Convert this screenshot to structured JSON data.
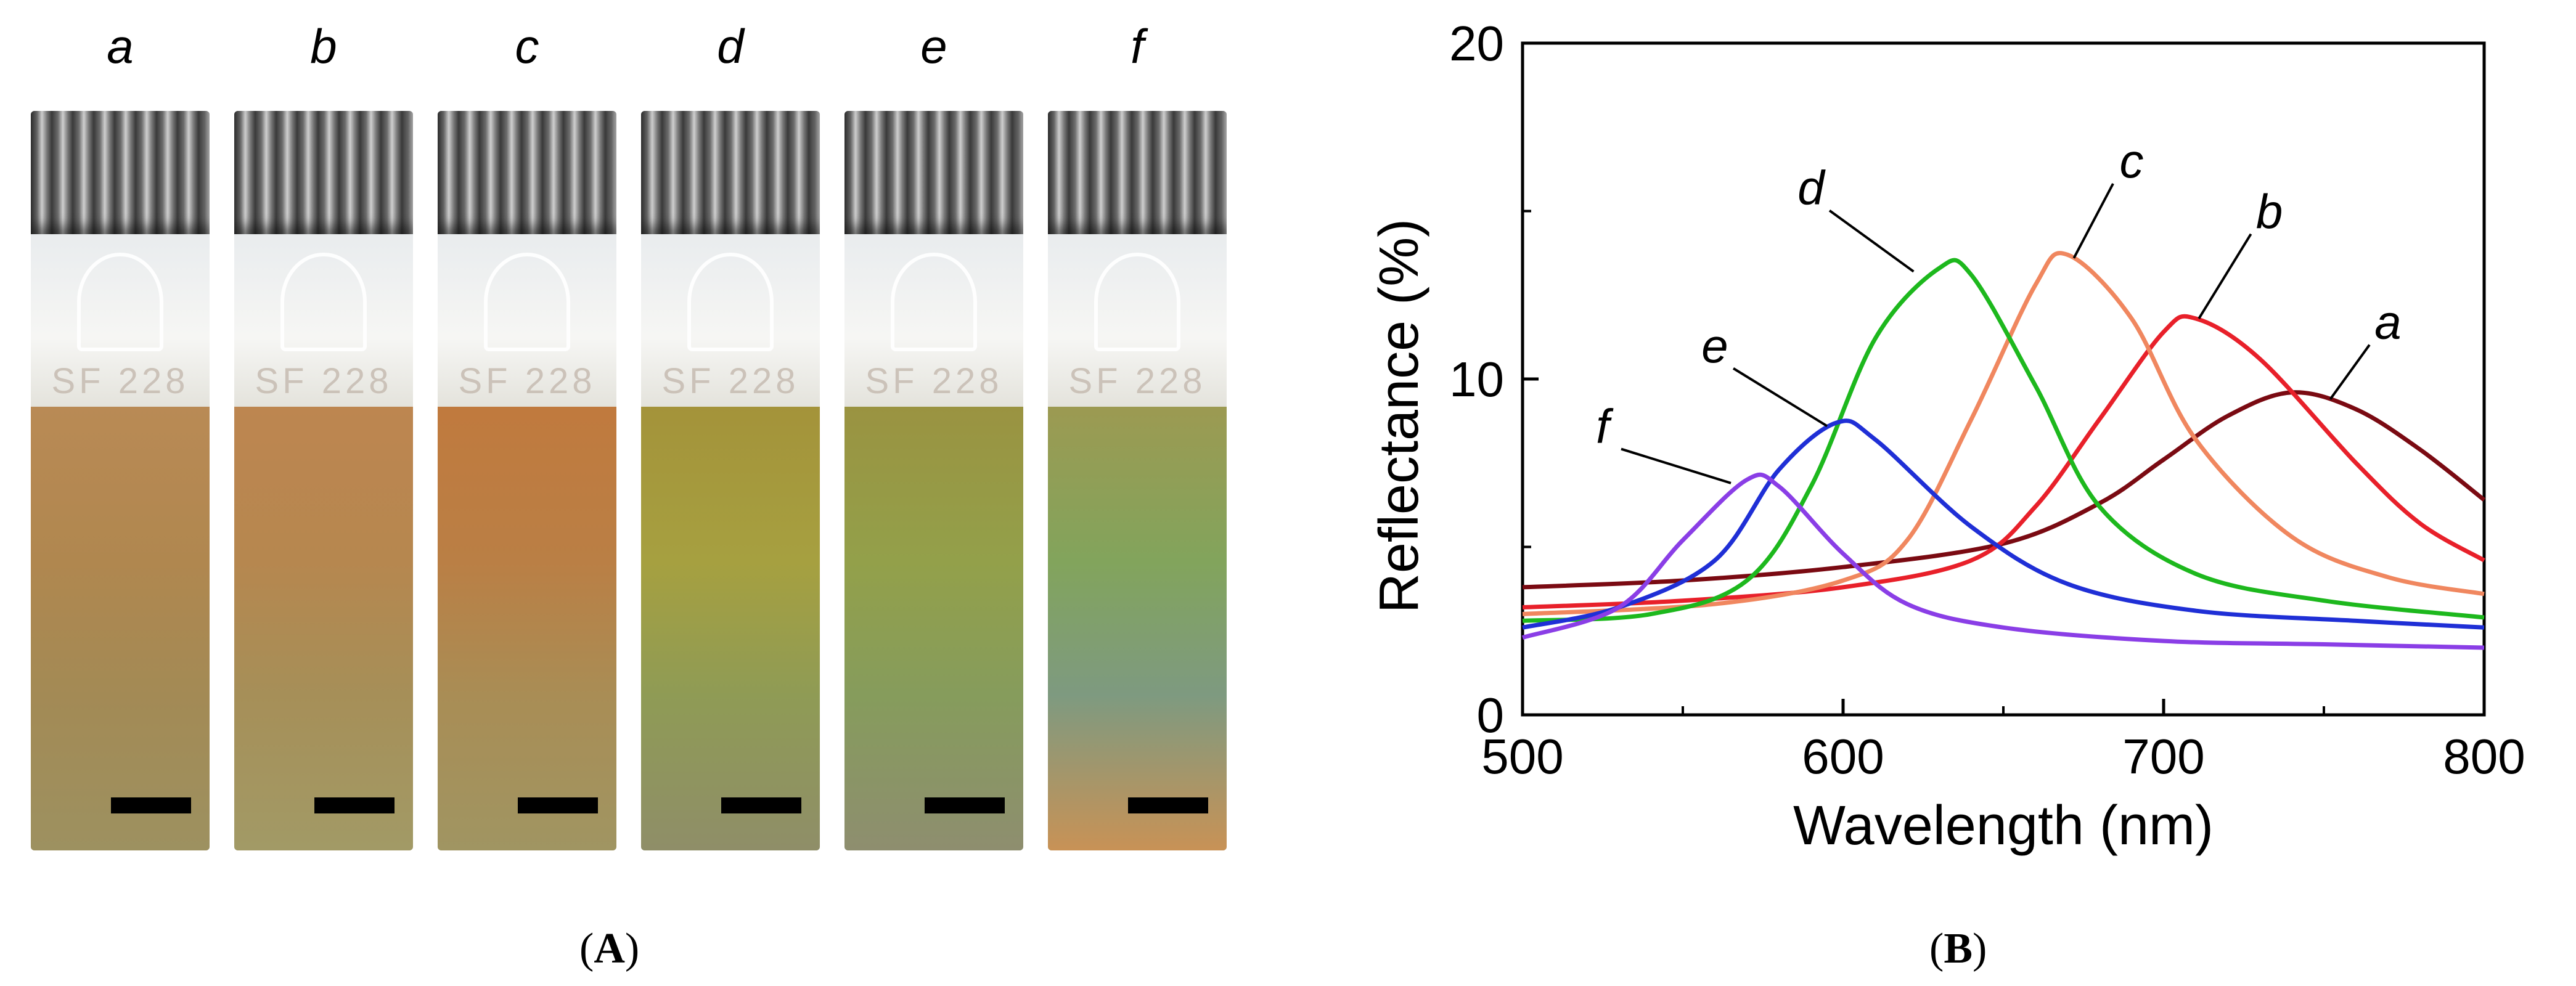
{
  "panel_a": {
    "label_open": "(",
    "label_letter": "A",
    "label_close": ")",
    "vials": [
      {
        "letter": "a",
        "etch": "SF 228",
        "colors": [
          "#b98a55",
          "#b0874f",
          "#a38a55",
          "#9d9160"
        ]
      },
      {
        "letter": "b",
        "etch": "SF 228",
        "colors": [
          "#bd8650",
          "#b6874f",
          "#a68f58",
          "#a29a66"
        ]
      },
      {
        "letter": "c",
        "etch": "SF 228",
        "colors": [
          "#c07a3e",
          "#ba7f45",
          "#a98d55",
          "#a09562"
        ]
      },
      {
        "letter": "d",
        "etch": "SF 228",
        "colors": [
          "#a4933a",
          "#a6a040",
          "#8f9b55",
          "#8f8e68"
        ]
      },
      {
        "letter": "e",
        "etch": "SF 228",
        "colors": [
          "#9a9341",
          "#93a04a",
          "#869c5c",
          "#8e8e6f"
        ]
      },
      {
        "letter": "f",
        "etch": "SF 228",
        "colors": [
          "#9c9a52",
          "#82a45c",
          "#7e9a80",
          "#c89256"
        ]
      }
    ]
  },
  "panel_b": {
    "label_open": "(",
    "label_letter": "B",
    "label_close": ")"
  },
  "chart_data": {
    "type": "line",
    "xlabel": "Wavelength (nm)",
    "ylabel": "Reflectance (%)",
    "xlim": [
      500,
      800
    ],
    "ylim": [
      0,
      20
    ],
    "xticks": [
      500,
      600,
      700,
      800
    ],
    "yticks": [
      0,
      10,
      20
    ],
    "grid": false,
    "series": [
      {
        "name": "a",
        "color": "#7a0a12",
        "points": [
          [
            500,
            3.8
          ],
          [
            550,
            4.0
          ],
          [
            600,
            4.4
          ],
          [
            650,
            5.1
          ],
          [
            680,
            6.3
          ],
          [
            700,
            7.6
          ],
          [
            720,
            8.9
          ],
          [
            740,
            9.6
          ],
          [
            760,
            9.1
          ],
          [
            780,
            7.9
          ],
          [
            800,
            6.4
          ]
        ]
      },
      {
        "name": "b",
        "color": "#e8202a",
        "points": [
          [
            500,
            3.2
          ],
          [
            550,
            3.4
          ],
          [
            600,
            3.8
          ],
          [
            640,
            4.6
          ],
          [
            660,
            6.2
          ],
          [
            680,
            8.8
          ],
          [
            700,
            11.4
          ],
          [
            710,
            11.8
          ],
          [
            730,
            10.6
          ],
          [
            760,
            7.5
          ],
          [
            780,
            5.7
          ],
          [
            800,
            4.6
          ]
        ]
      },
      {
        "name": "c",
        "color": "#f0875f",
        "points": [
          [
            500,
            3.0
          ],
          [
            560,
            3.3
          ],
          [
            600,
            4.0
          ],
          [
            620,
            5.2
          ],
          [
            640,
            8.8
          ],
          [
            660,
            12.8
          ],
          [
            670,
            13.7
          ],
          [
            690,
            11.8
          ],
          [
            710,
            8.2
          ],
          [
            740,
            5.3
          ],
          [
            770,
            4.1
          ],
          [
            800,
            3.6
          ]
        ]
      },
      {
        "name": "d",
        "color": "#1db81d",
        "points": [
          [
            500,
            2.8
          ],
          [
            540,
            3.0
          ],
          [
            570,
            4.0
          ],
          [
            590,
            6.8
          ],
          [
            610,
            11.2
          ],
          [
            630,
            13.3
          ],
          [
            640,
            13.1
          ],
          [
            660,
            9.8
          ],
          [
            680,
            6.2
          ],
          [
            710,
            4.2
          ],
          [
            750,
            3.4
          ],
          [
            800,
            2.9
          ]
        ]
      },
      {
        "name": "e",
        "color": "#1f2fd6",
        "points": [
          [
            500,
            2.6
          ],
          [
            530,
            3.2
          ],
          [
            560,
            4.6
          ],
          [
            580,
            7.3
          ],
          [
            598,
            8.7
          ],
          [
            610,
            8.2
          ],
          [
            640,
            5.6
          ],
          [
            670,
            3.9
          ],
          [
            710,
            3.1
          ],
          [
            760,
            2.8
          ],
          [
            800,
            2.6
          ]
        ]
      },
      {
        "name": "f",
        "color": "#8a3ee6",
        "points": [
          [
            500,
            2.3
          ],
          [
            530,
            3.2
          ],
          [
            550,
            5.2
          ],
          [
            570,
            7.0
          ],
          [
            580,
            6.8
          ],
          [
            600,
            4.8
          ],
          [
            620,
            3.3
          ],
          [
            650,
            2.6
          ],
          [
            700,
            2.2
          ],
          [
            750,
            2.1
          ],
          [
            800,
            2.0
          ]
        ]
      }
    ],
    "annotations": [
      {
        "text": "a",
        "x": 770,
        "y": 11.2,
        "ax": 752,
        "ay": 9.4
      },
      {
        "text": "b",
        "x": 733,
        "y": 14.5,
        "ax": 711,
        "ay": 11.8
      },
      {
        "text": "c",
        "x": 690,
        "y": 16.0,
        "ax": 672,
        "ay": 13.6
      },
      {
        "text": "d",
        "x": 590,
        "y": 15.2,
        "ax": 622,
        "ay": 13.2
      },
      {
        "text": "e",
        "x": 560,
        "y": 10.5,
        "ax": 595,
        "ay": 8.6
      },
      {
        "text": "f",
        "x": 525,
        "y": 8.1,
        "ax": 565,
        "ay": 6.9
      }
    ]
  }
}
